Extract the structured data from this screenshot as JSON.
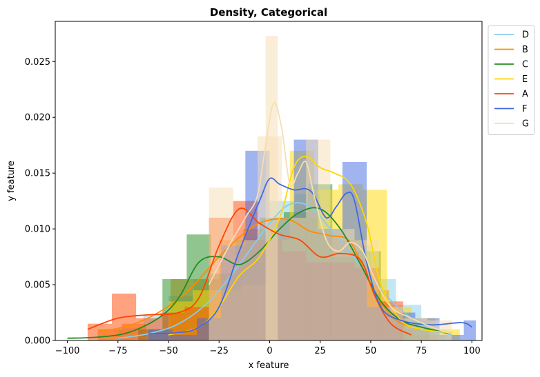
{
  "chart_data": {
    "type": "histogram-density",
    "title": "Density, Categorical",
    "xlabel": "x feature",
    "ylabel": "y feature",
    "xlim": [
      -106,
      105
    ],
    "ylim": [
      0,
      0.0286
    ],
    "xticks": [
      -100,
      -75,
      -50,
      -25,
      0,
      25,
      50,
      75,
      100
    ],
    "yticks": [
      0.0,
      0.005,
      0.01,
      0.015,
      0.02,
      0.025
    ],
    "ytick_labels": [
      "0.000",
      "0.005",
      "0.010",
      "0.015",
      "0.020",
      "0.025"
    ],
    "legend_position": "upper right, outside plot",
    "bar_opacity": 0.5,
    "series": [
      {
        "name": "D",
        "color": "#87CEEB",
        "bars": [
          {
            "x0": -75,
            "x1": -62.5,
            "y": 0.0011
          },
          {
            "x0": -62.5,
            "x1": -50,
            "y": 0.0023
          },
          {
            "x0": -50,
            "x1": -37.5,
            "y": 0.004
          },
          {
            "x0": -37.5,
            "x1": -25,
            "y": 0.0055
          },
          {
            "x0": -25,
            "x1": -12.5,
            "y": 0.007
          },
          {
            "x0": -12.5,
            "x1": 0,
            "y": 0.0092
          },
          {
            "x0": 0,
            "x1": 12.5,
            "y": 0.0125
          },
          {
            "x0": 12.5,
            "x1": 25,
            "y": 0.0131
          },
          {
            "x0": 25,
            "x1": 37.5,
            "y": 0.01
          },
          {
            "x0": 37.5,
            "x1": 50,
            "y": 0.0085
          },
          {
            "x0": 50,
            "x1": 62.5,
            "y": 0.0055
          },
          {
            "x0": 62.5,
            "x1": 75,
            "y": 0.0032
          },
          {
            "x0": 75,
            "x1": 87.5,
            "y": 0.001
          }
        ],
        "density_x": [
          -75,
          -60,
          -45,
          -30,
          -15,
          0,
          10,
          20,
          30,
          40,
          50,
          60,
          70,
          80,
          90
        ],
        "density_y": [
          0.0002,
          0.0006,
          0.0015,
          0.0035,
          0.0068,
          0.0105,
          0.0122,
          0.012,
          0.01,
          0.0078,
          0.0056,
          0.0036,
          0.002,
          0.001,
          0.0005
        ]
      },
      {
        "name": "B",
        "color": "#FF8C00",
        "bars": [
          {
            "x0": -85,
            "x1": -73,
            "y": 0.001
          },
          {
            "x0": -73,
            "x1": -61,
            "y": 0.0015
          },
          {
            "x0": -49,
            "x1": -37,
            "y": 0.0055
          },
          {
            "x0": -37,
            "x1": -25,
            "y": 0.0055
          },
          {
            "x0": -25,
            "x1": -13,
            "y": 0.009
          },
          {
            "x0": -13,
            "x1": -1,
            "y": 0.01
          },
          {
            "x0": -1,
            "x1": 11,
            "y": 0.011
          },
          {
            "x0": 11,
            "x1": 23,
            "y": 0.011
          },
          {
            "x0": 23,
            "x1": 35,
            "y": 0.0095
          },
          {
            "x0": 35,
            "x1": 47,
            "y": 0.009
          },
          {
            "x0": 47,
            "x1": 59,
            "y": 0.0045
          },
          {
            "x0": 59,
            "x1": 71,
            "y": 0.0015
          },
          {
            "x0": 71,
            "x1": 83,
            "y": 0.0005
          }
        ],
        "density_x": [
          -85,
          -70,
          -55,
          -40,
          -25,
          -10,
          0,
          10,
          20,
          30,
          40,
          50,
          60,
          70,
          80,
          90
        ],
        "density_y": [
          0.0008,
          0.0013,
          0.0025,
          0.0045,
          0.0075,
          0.01,
          0.0108,
          0.0108,
          0.0098,
          0.0094,
          0.0088,
          0.005,
          0.0022,
          0.0012,
          0.0009,
          0.0007
        ]
      },
      {
        "name": "C",
        "color": "#228B22",
        "bars": [
          {
            "x0": -65,
            "x1": -53,
            "y": 0.001
          },
          {
            "x0": -53,
            "x1": -41,
            "y": 0.0055
          },
          {
            "x0": -41,
            "x1": -29,
            "y": 0.0095
          },
          {
            "x0": -29,
            "x1": -17,
            "y": 0.006
          },
          {
            "x0": -17,
            "x1": -5,
            "y": 0.009
          },
          {
            "x0": -5,
            "x1": 7,
            "y": 0.011
          },
          {
            "x0": 7,
            "x1": 19,
            "y": 0.0115
          },
          {
            "x0": 19,
            "x1": 31,
            "y": 0.014
          },
          {
            "x0": 31,
            "x1": 43,
            "y": 0.0075
          },
          {
            "x0": 43,
            "x1": 55,
            "y": 0.008
          },
          {
            "x0": 55,
            "x1": 67,
            "y": 0.0025
          },
          {
            "x0": 67,
            "x1": 79,
            "y": 0.001
          }
        ],
        "density_x": [
          -100,
          -85,
          -70,
          -55,
          -45,
          -35,
          -25,
          -15,
          -5,
          5,
          15,
          25,
          35,
          45,
          55,
          65,
          75,
          90
        ],
        "density_y": [
          0.0002,
          0.0003,
          0.0007,
          0.002,
          0.0038,
          0.007,
          0.0075,
          0.0068,
          0.008,
          0.01,
          0.0115,
          0.0118,
          0.01,
          0.0068,
          0.0035,
          0.0018,
          0.0012,
          0.0006
        ]
      },
      {
        "name": "E",
        "color": "#FFD700",
        "bars": [
          {
            "x0": -50,
            "x1": -38,
            "y": 0.0035
          },
          {
            "x0": -38,
            "x1": -26,
            "y": 0.0045
          },
          {
            "x0": -26,
            "x1": -14,
            "y": 0.0045
          },
          {
            "x0": -14,
            "x1": -2,
            "y": 0.005
          },
          {
            "x0": -2,
            "x1": 10,
            "y": 0.009
          },
          {
            "x0": 10,
            "x1": 22,
            "y": 0.017
          },
          {
            "x0": 22,
            "x1": 34,
            "y": 0.0135
          },
          {
            "x0": 34,
            "x1": 46,
            "y": 0.014
          },
          {
            "x0": 46,
            "x1": 58,
            "y": 0.0135
          },
          {
            "x0": 58,
            "x1": 70,
            "y": 0.003
          },
          {
            "x0": 70,
            "x1": 82,
            "y": 0.002
          },
          {
            "x0": 82,
            "x1": 94,
            "y": 0.001
          }
        ],
        "density_x": [
          -50,
          -35,
          -25,
          -15,
          -5,
          5,
          12,
          18,
          25,
          32,
          40,
          48,
          55,
          65,
          75,
          90
        ],
        "density_y": [
          0.0005,
          0.0012,
          0.003,
          0.0058,
          0.0075,
          0.011,
          0.0155,
          0.0165,
          0.0155,
          0.015,
          0.014,
          0.0105,
          0.005,
          0.0018,
          0.001,
          0.0007
        ]
      },
      {
        "name": "A",
        "color": "#FF4500",
        "bars": [
          {
            "x0": -90,
            "x1": -78,
            "y": 0.0015
          },
          {
            "x0": -78,
            "x1": -66,
            "y": 0.0042
          },
          {
            "x0": -66,
            "x1": -54,
            "y": 0.002
          },
          {
            "x0": -54,
            "x1": -42,
            "y": 0.0025
          },
          {
            "x0": -42,
            "x1": -30,
            "y": 0.003
          },
          {
            "x0": -30,
            "x1": -18,
            "y": 0.011
          },
          {
            "x0": -18,
            "x1": -6,
            "y": 0.0125
          },
          {
            "x0": -6,
            "x1": 6,
            "y": 0.009
          },
          {
            "x0": 6,
            "x1": 18,
            "y": 0.008
          },
          {
            "x0": 18,
            "x1": 30,
            "y": 0.007
          },
          {
            "x0": 30,
            "x1": 42,
            "y": 0.007
          },
          {
            "x0": 42,
            "x1": 54,
            "y": 0.0065
          },
          {
            "x0": 54,
            "x1": 66,
            "y": 0.0035
          }
        ],
        "density_x": [
          -90,
          -75,
          -60,
          -45,
          -35,
          -25,
          -15,
          -5,
          5,
          15,
          25,
          35,
          45,
          52,
          60,
          70
        ],
        "density_y": [
          0.001,
          0.002,
          0.0023,
          0.0025,
          0.0038,
          0.0085,
          0.0118,
          0.0105,
          0.0095,
          0.009,
          0.0075,
          0.0078,
          0.0072,
          0.004,
          0.0015,
          0.0005
        ]
      },
      {
        "name": "F",
        "color": "#4169E1",
        "bars": [
          {
            "x0": -60,
            "x1": -48,
            "y": 0.001
          },
          {
            "x0": -48,
            "x1": -36,
            "y": 0.0005
          },
          {
            "x0": -36,
            "x1": -24,
            "y": 0.002
          },
          {
            "x0": -24,
            "x1": -12,
            "y": 0.0085
          },
          {
            "x0": -12,
            "x1": 0,
            "y": 0.017
          },
          {
            "x0": 0,
            "x1": 12,
            "y": 0.011
          },
          {
            "x0": 12,
            "x1": 24,
            "y": 0.018
          },
          {
            "x0": 24,
            "x1": 36,
            "y": 0.01
          },
          {
            "x0": 36,
            "x1": 48,
            "y": 0.016
          },
          {
            "x0": 48,
            "x1": 60,
            "y": 0.003
          },
          {
            "x0": 60,
            "x1": 72,
            "y": 0.0025
          },
          {
            "x0": 72,
            "x1": 84,
            "y": 0.002
          },
          {
            "x0": 84,
            "x1": 96,
            "y": 0.0005
          },
          {
            "x0": 96,
            "x1": 102,
            "y": 0.0018
          }
        ],
        "density_x": [
          -60,
          -45,
          -35,
          -25,
          -15,
          -5,
          0,
          5,
          12,
          18,
          22,
          28,
          33,
          38,
          42,
          48,
          55,
          65,
          80,
          95,
          100
        ],
        "density_y": [
          0.0006,
          0.0007,
          0.0012,
          0.003,
          0.008,
          0.0125,
          0.0145,
          0.014,
          0.0135,
          0.0136,
          0.013,
          0.011,
          0.012,
          0.0132,
          0.0125,
          0.007,
          0.003,
          0.0018,
          0.0014,
          0.0016,
          0.0012
        ]
      },
      {
        "name": "G",
        "color": "#F5DEB3",
        "bars": [
          {
            "x0": -30,
            "x1": -18,
            "y": 0.0137
          },
          {
            "x0": -18,
            "x1": -6,
            "y": 0.009
          },
          {
            "x0": -6,
            "x1": 6,
            "y": 0.0183
          },
          {
            "x0": -2,
            "x1": 4,
            "y": 0.0273
          },
          {
            "x0": 6,
            "x1": 18,
            "y": 0.011
          },
          {
            "x0": 18,
            "x1": 30,
            "y": 0.018
          },
          {
            "x0": 30,
            "x1": 42,
            "y": 0.01
          },
          {
            "x0": 42,
            "x1": 54,
            "y": 0.009
          },
          {
            "x0": 54,
            "x1": 66,
            "y": 0.003
          },
          {
            "x0": 66,
            "x1": 78,
            "y": 0.002
          },
          {
            "x0": 78,
            "x1": 90,
            "y": 0.0018
          }
        ],
        "density_x": [
          -30,
          -20,
          -12,
          -6,
          -2,
          2,
          6,
          10,
          14,
          18,
          22,
          28,
          34,
          40,
          46,
          52,
          60,
          70,
          80,
          90
        ],
        "density_y": [
          0.005,
          0.0085,
          0.011,
          0.013,
          0.0175,
          0.0213,
          0.019,
          0.014,
          0.015,
          0.016,
          0.013,
          0.009,
          0.008,
          0.0088,
          0.008,
          0.0055,
          0.003,
          0.002,
          0.0012,
          0.0006
        ]
      }
    ]
  }
}
